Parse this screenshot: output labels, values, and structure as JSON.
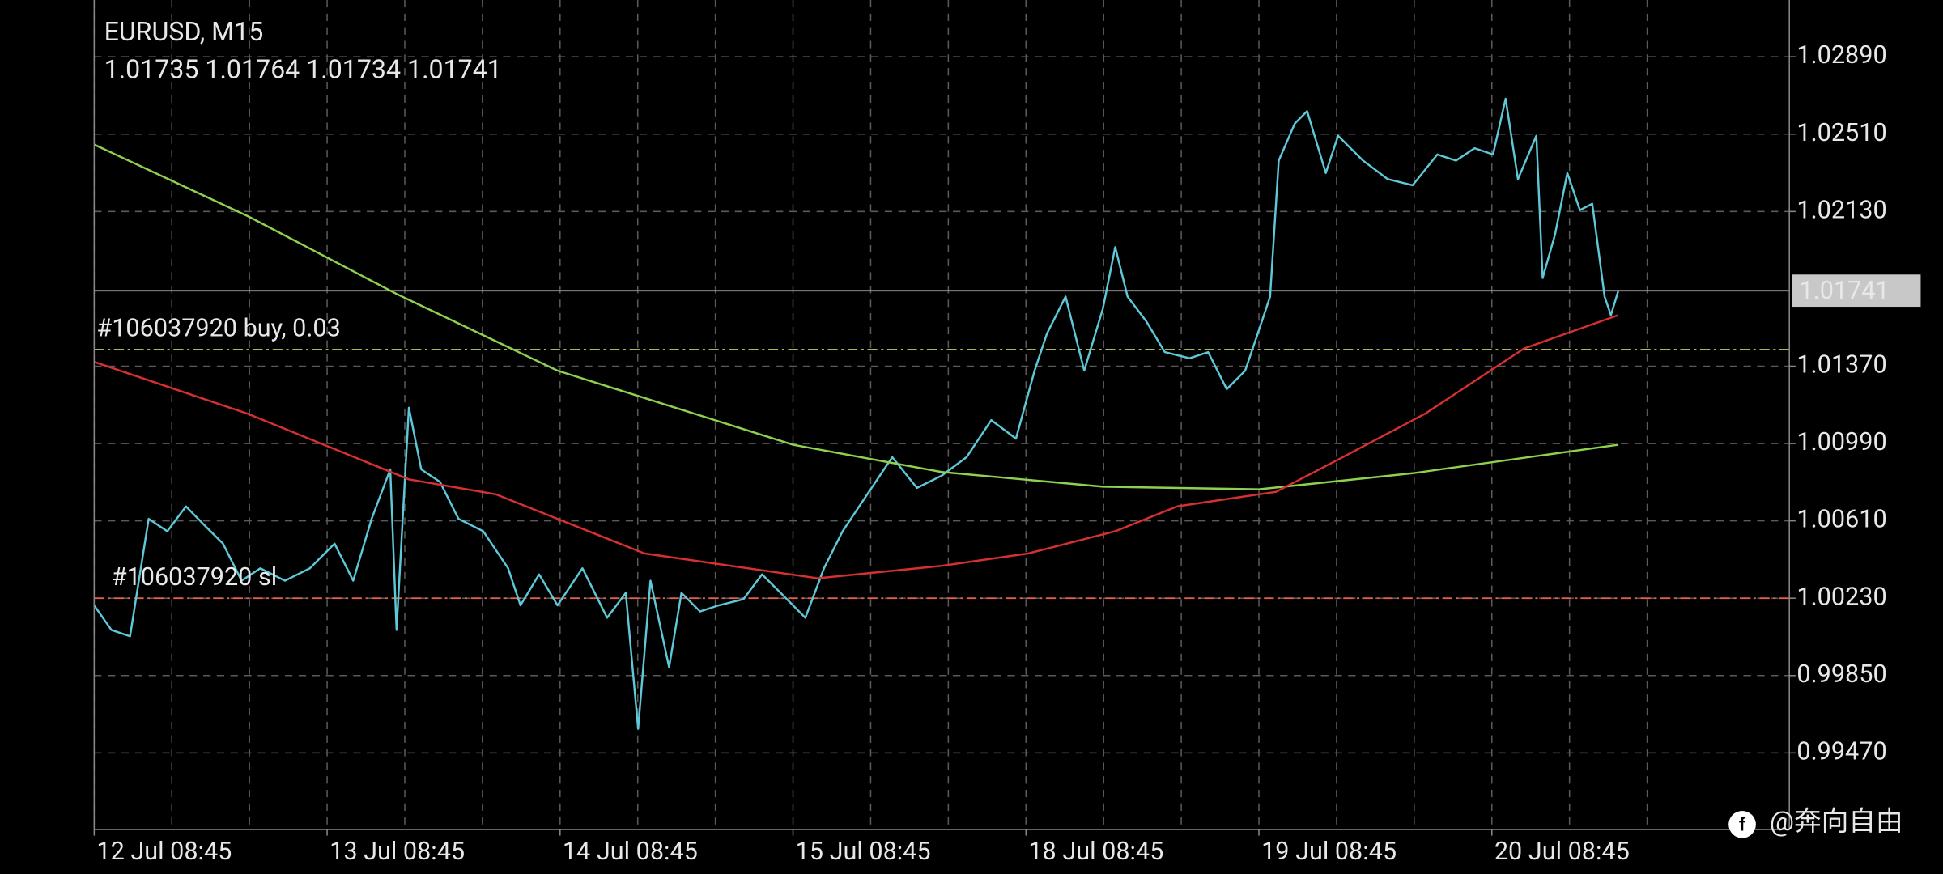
{
  "chart_data": {
    "type": "line",
    "title": "EURUSD, M15",
    "ohlc": [
      1.01735,
      1.01764,
      1.01734,
      1.01741
    ],
    "bid": 1.01741,
    "xlim": [
      0,
      7.277
    ],
    "ylim": [
      0.99094,
      1.03169
    ],
    "xticks": [
      {
        "value": 0,
        "label": "12 Jul 08:45"
      },
      {
        "value": 1,
        "label": "13 Jul 08:45"
      },
      {
        "value": 2,
        "label": "14 Jul 08:45"
      },
      {
        "value": 3,
        "label": "15 Jul 08:45"
      },
      {
        "value": 4,
        "label": "18 Jul 08:45"
      },
      {
        "value": 5,
        "label": "19 Jul 08:45"
      },
      {
        "value": 6,
        "label": "20 Jul 08:45"
      }
    ],
    "yticks": [
      {
        "value": 1.0289,
        "label": "1.02890"
      },
      {
        "value": 1.0251,
        "label": "1.02510"
      },
      {
        "value": 1.0213,
        "label": "1.02130"
      },
      {
        "value": 1.0137,
        "label": "1.01370"
      },
      {
        "value": 1.0099,
        "label": "1.00990"
      },
      {
        "value": 1.0061,
        "label": "1.00610"
      },
      {
        "value": 1.0023,
        "label": "1.00230"
      },
      {
        "value": 0.9985,
        "label": "0.99850"
      },
      {
        "value": 0.9947,
        "label": "0.99470"
      }
    ],
    "grid": true,
    "series": [
      {
        "color": "#5ec8d8",
        "x": [
          0,
          0.074,
          0.154,
          0.234,
          0.314,
          0.394,
          0.473,
          0.553,
          0.633,
          0.713,
          0.819,
          0.926,
          1.032,
          1.112,
          1.191,
          1.271,
          1.298,
          1.351,
          1.404,
          1.484,
          1.564,
          1.67,
          1.777,
          1.83,
          1.91,
          1.989,
          2.096,
          2.202,
          2.282,
          2.335,
          2.388,
          2.468,
          2.521,
          2.601,
          2.681,
          2.787,
          2.867,
          2.947,
          3.053,
          3.133,
          3.213,
          3.319,
          3.426,
          3.532,
          3.638,
          3.745,
          3.851,
          3.957,
          4.037,
          4.09,
          4.17,
          4.25,
          4.33,
          4.383,
          4.436,
          4.516,
          4.596,
          4.702,
          4.782,
          4.862,
          4.941,
          4.995,
          5.048,
          5.085,
          5.154,
          5.207,
          5.287,
          5.34,
          5.447,
          5.553,
          5.66,
          5.766,
          5.846,
          5.926,
          6.005,
          6.059,
          6.112,
          6.191,
          6.218,
          6.271,
          6.324,
          6.378,
          6.431,
          6.484,
          6.511,
          6.543
        ],
        "values": [
          1.00195,
          1.00074,
          1.00043,
          1.0062,
          1.00559,
          1.00681,
          1.00589,
          1.00498,
          1.00316,
          1.00377,
          1.00316,
          1.00377,
          1.00498,
          1.00316,
          1.0062,
          1.00863,
          1.00074,
          1.01166,
          1.00863,
          1.00802,
          1.0062,
          1.00559,
          1.00377,
          1.00195,
          1.00347,
          1.00195,
          1.00377,
          1.00134,
          1.00256,
          0.99588,
          1.00316,
          0.99891,
          1.00256,
          1.00165,
          1.00195,
          1.00225,
          1.00347,
          1.00256,
          1.00134,
          1.00377,
          1.00559,
          1.00741,
          1.00923,
          1.00772,
          1.00832,
          1.00923,
          1.01105,
          1.01014,
          1.01348,
          1.0153,
          1.01712,
          1.01348,
          1.01652,
          1.01955,
          1.01712,
          1.01591,
          1.01439,
          1.01409,
          1.01439,
          1.01257,
          1.01348,
          1.0153,
          1.01712,
          1.0238,
          1.02562,
          1.02623,
          1.02319,
          1.02502,
          1.0238,
          1.02289,
          1.02259,
          1.0241,
          1.0238,
          1.02441,
          1.0241,
          1.02684,
          1.02289,
          1.02502,
          1.01803,
          1.02016,
          1.02319,
          1.02137,
          1.02168,
          1.01712,
          1.01621,
          1.01741
        ]
      },
      {
        "color": "#8fd14f",
        "x": [
          0,
          0.66,
          1.298,
          1.989,
          3,
          3.638,
          4.33,
          5,
          5.66,
          6.543
        ],
        "values": [
          1.02459,
          1.02107,
          1.01725,
          1.01348,
          1.00984,
          1.0085,
          1.00778,
          1.00765,
          1.00844,
          1.00984
        ]
      },
      {
        "color": "#d83030",
        "x": [
          0,
          0.66,
          1.351,
          1.723,
          2.362,
          3.106,
          3.638,
          4.011,
          4.383,
          4.649,
          5.074,
          5.34,
          5.713,
          6.138,
          6.543
        ],
        "values": [
          1.01391,
          1.01136,
          1.00814,
          1.00741,
          1.0045,
          1.00328,
          1.00389,
          1.0045,
          1.00559,
          1.00681,
          1.00753,
          1.00911,
          1.01136,
          1.01457,
          1.01621
        ]
      }
    ],
    "levels": [
      {
        "label": "#106037920 buy, 0.03",
        "value": 1.01451,
        "color": "#c8d060"
      },
      {
        "label": "#106037920 sl",
        "value": 1.0023,
        "color": "#e0604a"
      }
    ],
    "watermark": "@奔向自由"
  }
}
